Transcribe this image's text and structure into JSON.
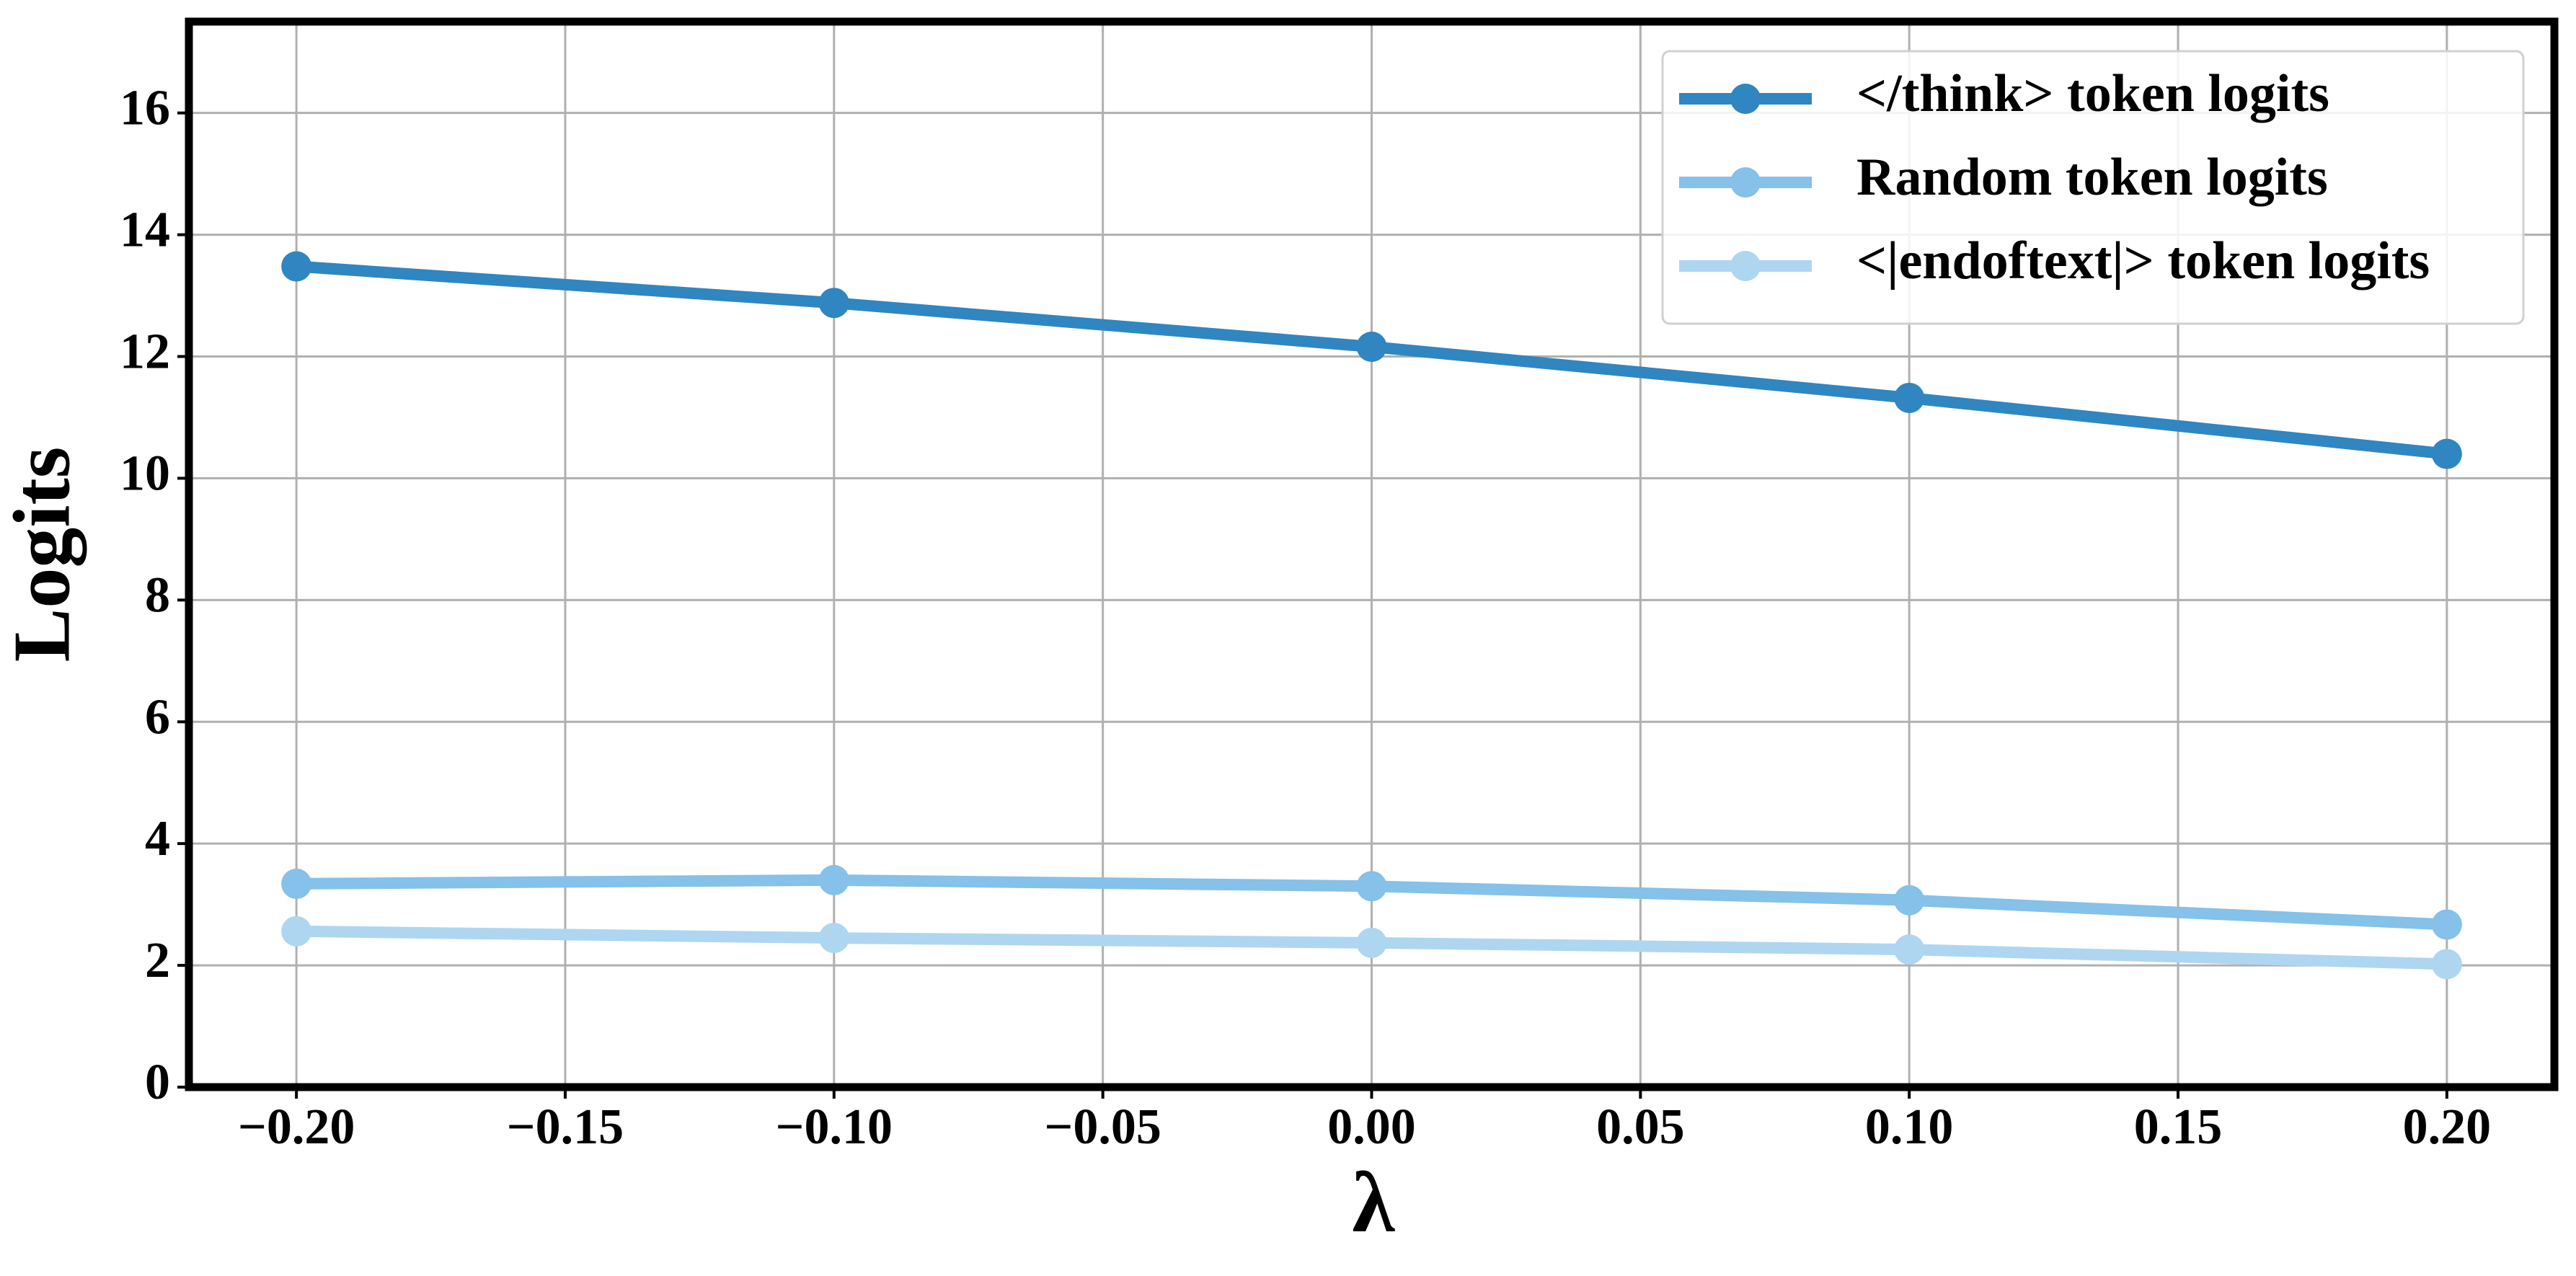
{
  "chart_data": {
    "type": "line",
    "x_label": "λ",
    "y_label": "Logits",
    "x": [
      -0.2,
      -0.1,
      0,
      0.1,
      0.2
    ],
    "series": [
      {
        "name": "</think> token logits",
        "color": "#2f86c1",
        "values": [
          13.48,
          12.88,
          12.16,
          11.32,
          10.4
        ]
      },
      {
        "name": "Random token logits",
        "color": "#85c1e9",
        "values": [
          3.34,
          3.4,
          3.3,
          3.07,
          2.67
        ]
      },
      {
        "name": "<|endoftext|> token logits",
        "color": "#aed6f1",
        "values": [
          2.56,
          2.45,
          2.37,
          2.26,
          2.02
        ]
      }
    ],
    "xlim": [
      -0.22,
      0.22
    ],
    "xticks": [
      {
        "value": -0.2,
        "label": "−0.20"
      },
      {
        "value": -0.15,
        "label": "−0.15"
      },
      {
        "value": -0.1,
        "label": "−0.10"
      },
      {
        "value": -0.05,
        "label": "−0.05"
      },
      {
        "value": 0,
        "label": "0.00"
      },
      0.05,
      {
        "value": 0.1,
        "label": "0.10"
      },
      0.15,
      {
        "value": 0.2,
        "label": "0.20"
      }
    ],
    "ylim": [
      0,
      17.5
    ],
    "yticks": [
      0,
      2,
      4,
      6,
      8,
      10,
      12,
      14,
      16
    ],
    "grid": true,
    "legend": "upper right"
  }
}
